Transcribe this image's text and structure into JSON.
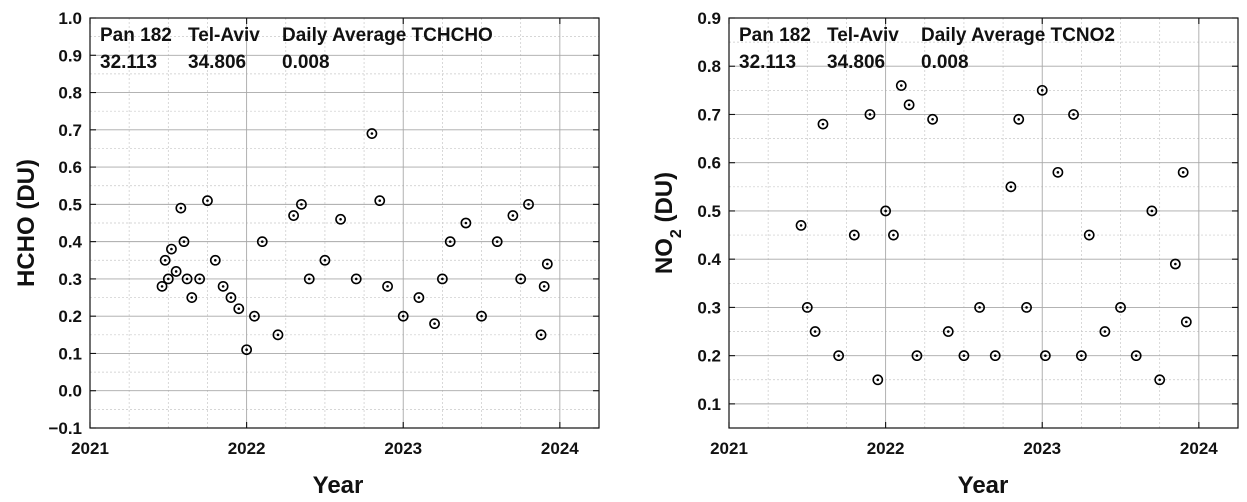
{
  "chart_data": [
    {
      "type": "scatter",
      "xlabel": "Year",
      "ylabel": "HCHO (DU)",
      "ylabel_sub": "",
      "ylabel_tail": "",
      "xlim": [
        2021,
        2024.25
      ],
      "ylim": [
        -0.1,
        1.0
      ],
      "xticks": [
        2021,
        2022,
        2023,
        2024
      ],
      "xtick_labels": [
        "2021",
        "2022",
        "2023",
        "2024"
      ],
      "yticks": [
        -0.1,
        0.0,
        0.1,
        0.2,
        0.3,
        0.4,
        0.5,
        0.6,
        0.7,
        0.8,
        0.9,
        1.0
      ],
      "ytick_labels": [
        "−0.1",
        "0.0",
        "0.1",
        "0.2",
        "0.3",
        "0.4",
        "0.5",
        "0.6",
        "0.7",
        "0.8",
        "0.9",
        "1.0"
      ],
      "grid": "on",
      "annotation": {
        "line1": [
          "Pan 182",
          "Tel-Aviv",
          "Daily Average TCHCHO"
        ],
        "line2": [
          "32.113",
          "34.806",
          "0.008"
        ]
      },
      "series": [
        {
          "x": [
            2021.46,
            2021.48,
            2021.5,
            2021.52,
            2021.55,
            2021.58,
            2021.6,
            2021.62,
            2021.65,
            2021.7,
            2021.75,
            2021.8,
            2021.85,
            2021.9,
            2021.95,
            2022.0,
            2022.05,
            2022.1,
            2022.2,
            2022.3,
            2022.35,
            2022.4,
            2022.5,
            2022.6,
            2022.7,
            2022.8,
            2022.85,
            2022.9,
            2023.0,
            2023.1,
            2023.2,
            2023.25,
            2023.3,
            2023.4,
            2023.5,
            2023.6,
            2023.7,
            2023.75,
            2023.8,
            2023.88,
            2023.9,
            2023.92
          ],
          "y": [
            0.28,
            0.35,
            0.3,
            0.38,
            0.32,
            0.49,
            0.4,
            0.3,
            0.25,
            0.3,
            0.51,
            0.35,
            0.28,
            0.25,
            0.22,
            0.11,
            0.2,
            0.4,
            0.15,
            0.47,
            0.5,
            0.3,
            0.35,
            0.46,
            0.3,
            0.69,
            0.51,
            0.28,
            0.2,
            0.25,
            0.18,
            0.3,
            0.4,
            0.45,
            0.2,
            0.4,
            0.47,
            0.3,
            0.5,
            0.15,
            0.28,
            0.34
          ]
        }
      ]
    },
    {
      "type": "scatter",
      "xlabel": "Year",
      "ylabel": "NO",
      "ylabel_sub": "2",
      "ylabel_tail": " (DU)",
      "xlim": [
        2021,
        2024.25
      ],
      "ylim": [
        0.05,
        0.9
      ],
      "xticks": [
        2021,
        2022,
        2023,
        2024
      ],
      "xtick_labels": [
        "2021",
        "2022",
        "2023",
        "2024"
      ],
      "yticks": [
        0.1,
        0.2,
        0.3,
        0.4,
        0.5,
        0.6,
        0.7,
        0.8,
        0.9
      ],
      "ytick_labels": [
        "0.1",
        "0.2",
        "0.3",
        "0.4",
        "0.5",
        "0.6",
        "0.7",
        "0.8",
        "0.9"
      ],
      "grid": "on",
      "annotation": {
        "line1": [
          "Pan 182",
          "Tel-Aviv",
          "Daily Average TCNO2"
        ],
        "line2": [
          "32.113",
          "34.806",
          "0.008"
        ]
      },
      "series": [
        {
          "x": [
            2021.46,
            2021.5,
            2021.55,
            2021.6,
            2021.7,
            2021.8,
            2021.9,
            2021.95,
            2022.0,
            2022.05,
            2022.1,
            2022.15,
            2022.2,
            2022.3,
            2022.4,
            2022.5,
            2022.6,
            2022.7,
            2022.8,
            2022.85,
            2022.9,
            2023.0,
            2023.02,
            2023.1,
            2023.2,
            2023.25,
            2023.3,
            2023.4,
            2023.5,
            2023.6,
            2023.7,
            2023.75,
            2023.85,
            2023.9,
            2023.92
          ],
          "y": [
            0.47,
            0.3,
            0.25,
            0.68,
            0.2,
            0.45,
            0.7,
            0.15,
            0.5,
            0.45,
            0.76,
            0.72,
            0.2,
            0.69,
            0.25,
            0.2,
            0.3,
            0.2,
            0.55,
            0.69,
            0.3,
            0.75,
            0.2,
            0.58,
            0.7,
            0.2,
            0.45,
            0.25,
            0.3,
            0.2,
            0.5,
            0.15,
            0.39,
            0.58,
            0.27
          ]
        }
      ]
    }
  ]
}
